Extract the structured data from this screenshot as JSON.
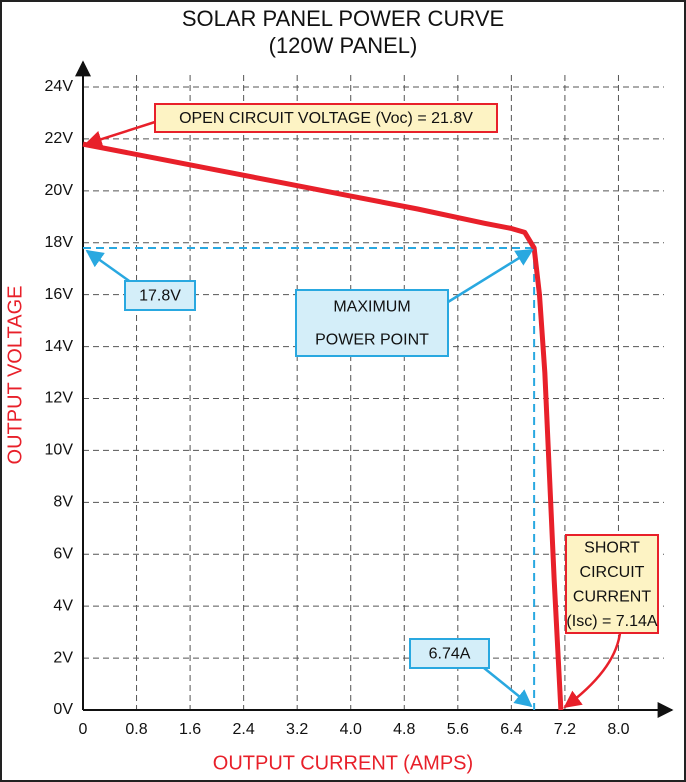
{
  "chart_data": {
    "type": "line",
    "title": "SOLAR PANEL POWER CURVE",
    "subtitle": "(120W PANEL)",
    "x_label": "OUTPUT CURRENT (AMPS)",
    "y_label": "OUTPUT VOLTAGE",
    "x": [
      0,
      1,
      2,
      3,
      4,
      5,
      6,
      6.4,
      6.6,
      6.74,
      6.82,
      6.9,
      6.97,
      7.04,
      7.1,
      7.14
    ],
    "series": [
      {
        "color": "#e8202a",
        "values": [
          21.8,
          21.3,
          20.8,
          20.3,
          19.8,
          19.3,
          18.75,
          18.55,
          18.4,
          17.8,
          16,
          13,
          9,
          5,
          2,
          0
        ]
      }
    ],
    "xlim": [
      0,
      8.8
    ],
    "ylim": [
      0,
      24
    ],
    "xticks": [
      0,
      0.8,
      1.6,
      2.4,
      3.2,
      {
        "value": 4,
        "label": "4.0"
      },
      4.8,
      5.6,
      6.4,
      7.2,
      {
        "value": 8,
        "label": "8.0"
      }
    ],
    "yticks": [
      {
        "value": 0,
        "label": "0V"
      },
      {
        "value": 2,
        "label": "2V"
      },
      {
        "value": 4,
        "label": "4V"
      },
      {
        "value": 6,
        "label": "6V"
      },
      {
        "value": 8,
        "label": "8V"
      },
      {
        "value": 10,
        "label": "10V"
      },
      {
        "value": 12,
        "label": "12V"
      },
      {
        "value": 14,
        "label": "14V"
      },
      {
        "value": 16,
        "label": "16V"
      },
      {
        "value": 18,
        "label": "18V"
      },
      {
        "value": 20,
        "label": "20V"
      },
      {
        "value": 22,
        "label": "22V"
      },
      {
        "value": 24,
        "label": "24V"
      }
    ],
    "grid": true,
    "mpp": {
      "x": 6.74,
      "y": 17.8,
      "color": "#29a8e0"
    },
    "voc_label": "OPEN CIRCUIT VOLTAGE (Voc) = 21.8V",
    "vmp_label": "17.8V",
    "mpp_label": [
      "MAXIMUM",
      "POWER POINT"
    ],
    "imp_label": "6.74A",
    "isc_label": [
      "SHORT",
      "CIRCUIT",
      "CURRENT",
      "(Isc) = 7.14A"
    ]
  }
}
